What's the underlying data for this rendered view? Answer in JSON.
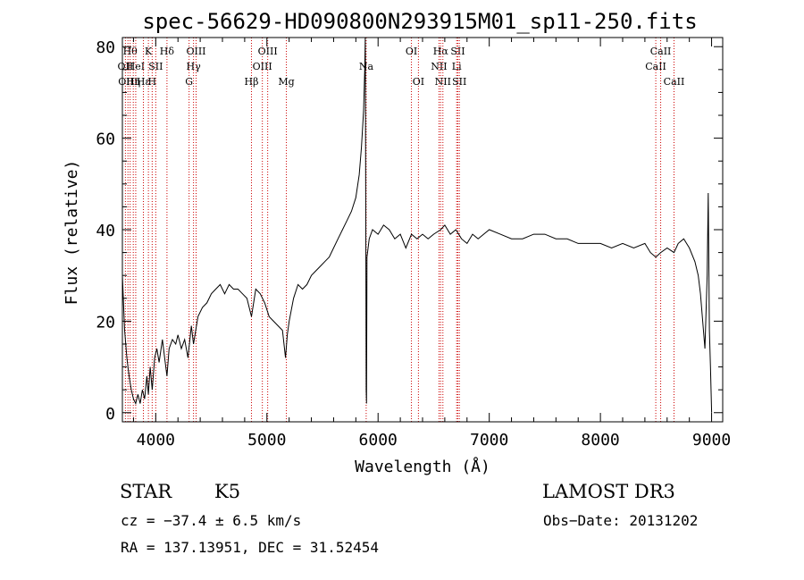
{
  "chart_data": {
    "type": "line",
    "title": "spec-56629-HD090800N293915M01_sp11-250.fits",
    "xlabel": "Wavelength (Å)",
    "ylabel": "Flux (relative)",
    "xlim": [
      3700,
      9100
    ],
    "ylim": [
      -2,
      82
    ],
    "x_ticks": [
      4000,
      5000,
      6000,
      7000,
      8000,
      9000
    ],
    "y_ticks": [
      0,
      20,
      40,
      60,
      80
    ],
    "grid": false,
    "series": [
      {
        "x": [
          3700,
          3720,
          3740,
          3760,
          3780,
          3800,
          3820,
          3840,
          3860,
          3880,
          3900,
          3920,
          3934,
          3950,
          3968,
          3990,
          4010,
          4030,
          4060,
          4080,
          4101,
          4120,
          4150,
          4180,
          4200,
          4230,
          4260,
          4290,
          4320,
          4340,
          4380,
          4420,
          4460,
          4500,
          4540,
          4580,
          4620,
          4660,
          4700,
          4740,
          4780,
          4820,
          4861,
          4900,
          4940,
          4980,
          5020,
          5060,
          5100,
          5140,
          5167,
          5183,
          5200,
          5240,
          5280,
          5320,
          5360,
          5400,
          5440,
          5480,
          5520,
          5560,
          5600,
          5640,
          5680,
          5720,
          5760,
          5800,
          5830,
          5850,
          5870,
          5880,
          5885,
          5890,
          5893,
          5896,
          5900,
          5920,
          5950,
          6000,
          6050,
          6100,
          6150,
          6200,
          6250,
          6300,
          6350,
          6400,
          6450,
          6500,
          6563,
          6600,
          6650,
          6700,
          6750,
          6800,
          6850,
          6900,
          6950,
          7000,
          7100,
          7200,
          7300,
          7400,
          7500,
          7600,
          7700,
          7800,
          7900,
          8000,
          8100,
          8200,
          8300,
          8400,
          8450,
          8498,
          8542,
          8600,
          8662,
          8700,
          8750,
          8800,
          8850,
          8880,
          8900,
          8920,
          8940,
          8960,
          8970,
          8980,
          8990,
          9000
        ],
        "values": [
          30,
          18,
          12,
          8,
          5,
          3,
          2,
          4,
          2,
          5,
          3,
          8,
          4,
          10,
          5,
          12,
          14,
          11,
          16,
          12,
          8,
          14,
          16,
          15,
          17,
          14,
          16,
          12,
          19,
          15,
          21,
          23,
          24,
          26,
          27,
          28,
          26,
          28,
          27,
          27,
          26,
          25,
          21,
          27,
          26,
          24,
          21,
          20,
          19,
          18,
          12,
          17,
          20,
          25,
          28,
          27,
          28,
          30,
          31,
          32,
          33,
          34,
          36,
          38,
          40,
          42,
          44,
          47,
          52,
          58,
          66,
          75,
          82,
          40,
          5,
          2,
          34,
          38,
          40,
          39,
          41,
          40,
          38,
          39,
          36,
          39,
          38,
          39,
          38,
          39,
          40,
          41,
          39,
          40,
          38,
          37,
          39,
          38,
          39,
          40,
          39,
          38,
          38,
          39,
          39,
          38,
          38,
          37,
          37,
          37,
          36,
          37,
          36,
          37,
          35,
          34,
          35,
          36,
          35,
          37,
          38,
          36,
          33,
          30,
          26,
          20,
          14,
          30,
          48,
          18,
          10,
          0
        ]
      }
    ],
    "lines": [
      {
        "x": 3727,
        "label": "OII",
        "row": 2
      },
      {
        "x": 3750,
        "label": "OIII",
        "row": 3
      },
      {
        "x": 3770,
        "label": "Hθ",
        "row": 1
      },
      {
        "x": 3798,
        "label": "Hη",
        "row": 3
      },
      {
        "x": 3820,
        "label": "HeI",
        "row": 2
      },
      {
        "x": 3889,
        "label": "Hε",
        "row": 3
      },
      {
        "x": 3934,
        "label": "K",
        "row": 1
      },
      {
        "x": 3968,
        "label": "H",
        "row": 3
      },
      {
        "x": 4000,
        "label": "SII",
        "row": 2
      },
      {
        "x": 4101,
        "label": "Hδ",
        "row": 1
      },
      {
        "x": 4300,
        "label": "G",
        "row": 3
      },
      {
        "x": 4340,
        "label": "Hγ",
        "row": 2
      },
      {
        "x": 4363,
        "label": "OIII",
        "row": 1
      },
      {
        "x": 4861,
        "label": "Hβ",
        "row": 3
      },
      {
        "x": 4959,
        "label": "OIII",
        "row": 2
      },
      {
        "x": 5007,
        "label": "OIII",
        "row": 1
      },
      {
        "x": 5175,
        "label": "Mg",
        "row": 3
      },
      {
        "x": 5893,
        "label": "Na",
        "row": 2
      },
      {
        "x": 6300,
        "label": "OI",
        "row": 1
      },
      {
        "x": 6363,
        "label": "OI",
        "row": 3
      },
      {
        "x": 6548,
        "label": "NII",
        "row": 2
      },
      {
        "x": 6563,
        "label": "Hα",
        "row": 1
      },
      {
        "x": 6583,
        "label": "NII",
        "row": 3
      },
      {
        "x": 6707,
        "label": "Li",
        "row": 2
      },
      {
        "x": 6717,
        "label": "SII",
        "row": 1
      },
      {
        "x": 6731,
        "label": "SII",
        "row": 3
      },
      {
        "x": 8498,
        "label": "CaII",
        "row": 2
      },
      {
        "x": 8542,
        "label": "CaII",
        "row": 1
      },
      {
        "x": 8662,
        "label": "CaII",
        "row": 3
      }
    ]
  },
  "info": {
    "object_class": "STAR",
    "subclass": "K5",
    "survey": "LAMOST DR3",
    "cz": "cz = −37.4 ± 6.5 km/s",
    "obs_date": "Obs−Date: 20131202",
    "radec": "RA = 137.13951, DEC =  31.52454"
  }
}
